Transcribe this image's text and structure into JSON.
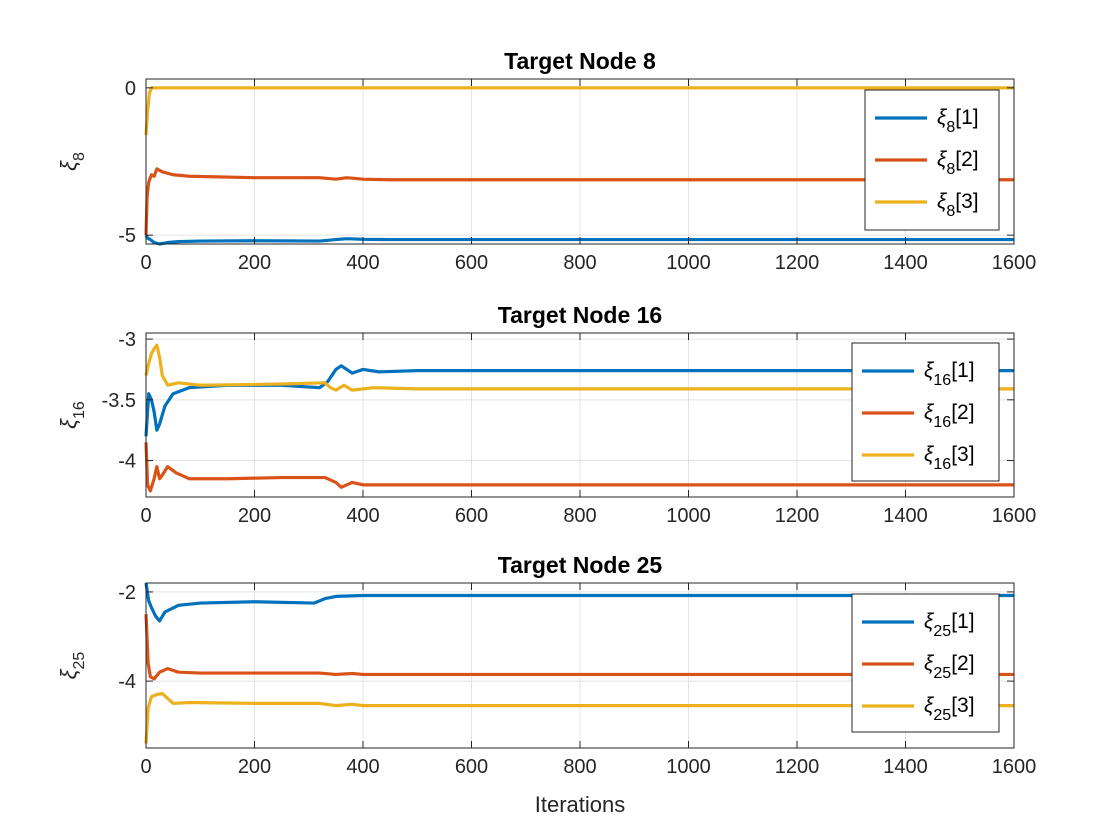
{
  "chart_data": [
    {
      "type": "line",
      "title": "Target Node 8",
      "xlabel": "",
      "ylabel": "ξ",
      "ylabel_sub": "8",
      "xlim": [
        0,
        1600
      ],
      "ylim": [
        -5.3,
        0.3
      ],
      "xticks": [
        0,
        200,
        400,
        600,
        800,
        1000,
        1200,
        1400,
        1600
      ],
      "yticks": [
        -5,
        0
      ],
      "grid": true,
      "legend": "top-right",
      "series": [
        {
          "name": "ξ",
          "sub": "8",
          "idx": "[1]",
          "color": "#0072BD",
          "points": [
            [
              0,
              -5.0
            ],
            [
              3,
              -5.1
            ],
            [
              8,
              -5.15
            ],
            [
              15,
              -5.25
            ],
            [
              25,
              -5.3
            ],
            [
              40,
              -5.25
            ],
            [
              60,
              -5.22
            ],
            [
              100,
              -5.2
            ],
            [
              200,
              -5.19
            ],
            [
              320,
              -5.2
            ],
            [
              350,
              -5.15
            ],
            [
              370,
              -5.12
            ],
            [
              400,
              -5.14
            ],
            [
              450,
              -5.15
            ],
            [
              500,
              -5.15
            ],
            [
              600,
              -5.15
            ],
            [
              1600,
              -5.15
            ]
          ]
        },
        {
          "name": "ξ",
          "sub": "8",
          "idx": "[2]",
          "color": "#D95319",
          "points": [
            [
              0,
              -5.0
            ],
            [
              2,
              -3.7
            ],
            [
              5,
              -3.2
            ],
            [
              10,
              -2.95
            ],
            [
              15,
              -3.0
            ],
            [
              20,
              -2.75
            ],
            [
              30,
              -2.85
            ],
            [
              50,
              -2.95
            ],
            [
              80,
              -3.0
            ],
            [
              200,
              -3.05
            ],
            [
              320,
              -3.05
            ],
            [
              350,
              -3.1
            ],
            [
              370,
              -3.05
            ],
            [
              400,
              -3.1
            ],
            [
              450,
              -3.12
            ],
            [
              500,
              -3.12
            ],
            [
              1600,
              -3.12
            ]
          ]
        },
        {
          "name": "ξ",
          "sub": "8",
          "idx": "[3]",
          "color": "#EDB120",
          "points": [
            [
              0,
              -1.6
            ],
            [
              3,
              -0.8
            ],
            [
              6,
              -0.2
            ],
            [
              10,
              0.0
            ],
            [
              20,
              0.0
            ],
            [
              1600,
              0.0
            ]
          ]
        }
      ]
    },
    {
      "type": "line",
      "title": "Target Node 16",
      "xlabel": "",
      "ylabel": "ξ",
      "ylabel_sub": "16",
      "xlim": [
        0,
        1600
      ],
      "ylim": [
        -4.3,
        -2.95
      ],
      "xticks": [
        0,
        200,
        400,
        600,
        800,
        1000,
        1200,
        1400,
        1600
      ],
      "yticks": [
        -4,
        -3.5,
        -3
      ],
      "grid": true,
      "legend": "top-right",
      "series": [
        {
          "name": "ξ",
          "sub": "16",
          "idx": "[1]",
          "color": "#0072BD",
          "points": [
            [
              0,
              -3.8
            ],
            [
              5,
              -3.45
            ],
            [
              10,
              -3.5
            ],
            [
              15,
              -3.6
            ],
            [
              20,
              -3.75
            ],
            [
              25,
              -3.7
            ],
            [
              35,
              -3.55
            ],
            [
              50,
              -3.45
            ],
            [
              80,
              -3.4
            ],
            [
              150,
              -3.38
            ],
            [
              250,
              -3.38
            ],
            [
              320,
              -3.4
            ],
            [
              335,
              -3.35
            ],
            [
              350,
              -3.25
            ],
            [
              360,
              -3.22
            ],
            [
              380,
              -3.28
            ],
            [
              400,
              -3.25
            ],
            [
              430,
              -3.27
            ],
            [
              500,
              -3.26
            ],
            [
              600,
              -3.26
            ],
            [
              1600,
              -3.26
            ]
          ]
        },
        {
          "name": "ξ",
          "sub": "16",
          "idx": "[2]",
          "color": "#D95319",
          "points": [
            [
              0,
              -3.85
            ],
            [
              3,
              -4.2
            ],
            [
              8,
              -4.25
            ],
            [
              15,
              -4.15
            ],
            [
              20,
              -4.05
            ],
            [
              25,
              -4.15
            ],
            [
              30,
              -4.12
            ],
            [
              40,
              -4.05
            ],
            [
              55,
              -4.1
            ],
            [
              80,
              -4.15
            ],
            [
              150,
              -4.15
            ],
            [
              250,
              -4.14
            ],
            [
              330,
              -4.14
            ],
            [
              350,
              -4.18
            ],
            [
              360,
              -4.22
            ],
            [
              380,
              -4.18
            ],
            [
              400,
              -4.2
            ],
            [
              450,
              -4.2
            ],
            [
              1600,
              -4.2
            ]
          ]
        },
        {
          "name": "ξ",
          "sub": "16",
          "idx": "[3]",
          "color": "#EDB120",
          "points": [
            [
              0,
              -3.3
            ],
            [
              5,
              -3.2
            ],
            [
              10,
              -3.12
            ],
            [
              15,
              -3.08
            ],
            [
              20,
              -3.05
            ],
            [
              25,
              -3.15
            ],
            [
              30,
              -3.3
            ],
            [
              40,
              -3.38
            ],
            [
              60,
              -3.36
            ],
            [
              100,
              -3.38
            ],
            [
              250,
              -3.37
            ],
            [
              330,
              -3.36
            ],
            [
              340,
              -3.4
            ],
            [
              350,
              -3.42
            ],
            [
              365,
              -3.38
            ],
            [
              380,
              -3.42
            ],
            [
              420,
              -3.4
            ],
            [
              500,
              -3.41
            ],
            [
              600,
              -3.41
            ],
            [
              1600,
              -3.41
            ]
          ]
        }
      ]
    },
    {
      "type": "line",
      "title": "Target Node 25",
      "xlabel": "Iterations",
      "ylabel": "ξ",
      "ylabel_sub": "25",
      "xlim": [
        0,
        1600
      ],
      "ylim": [
        -5.5,
        -1.8
      ],
      "xticks": [
        0,
        200,
        400,
        600,
        800,
        1000,
        1200,
        1400,
        1600
      ],
      "yticks": [
        -4,
        -2
      ],
      "grid": true,
      "legend": "top-right",
      "series": [
        {
          "name": "ξ",
          "sub": "25",
          "idx": "[1]",
          "color": "#0072BD",
          "points": [
            [
              0,
              -1.8
            ],
            [
              5,
              -2.2
            ],
            [
              10,
              -2.35
            ],
            [
              18,
              -2.55
            ],
            [
              25,
              -2.65
            ],
            [
              35,
              -2.45
            ],
            [
              60,
              -2.3
            ],
            [
              100,
              -2.25
            ],
            [
              200,
              -2.22
            ],
            [
              310,
              -2.25
            ],
            [
              330,
              -2.15
            ],
            [
              350,
              -2.1
            ],
            [
              400,
              -2.08
            ],
            [
              500,
              -2.08
            ],
            [
              1600,
              -2.08
            ]
          ]
        },
        {
          "name": "ξ",
          "sub": "25",
          "idx": "[2]",
          "color": "#D95319",
          "points": [
            [
              0,
              -2.5
            ],
            [
              4,
              -3.6
            ],
            [
              8,
              -3.9
            ],
            [
              15,
              -3.95
            ],
            [
              25,
              -3.8
            ],
            [
              40,
              -3.72
            ],
            [
              60,
              -3.8
            ],
            [
              100,
              -3.82
            ],
            [
              200,
              -3.82
            ],
            [
              320,
              -3.82
            ],
            [
              350,
              -3.85
            ],
            [
              380,
              -3.83
            ],
            [
              400,
              -3.85
            ],
            [
              1600,
              -3.85
            ]
          ]
        },
        {
          "name": "ξ",
          "sub": "25",
          "idx": "[3]",
          "color": "#EDB120",
          "points": [
            [
              0,
              -5.4
            ],
            [
              4,
              -4.6
            ],
            [
              10,
              -4.35
            ],
            [
              20,
              -4.3
            ],
            [
              30,
              -4.28
            ],
            [
              50,
              -4.5
            ],
            [
              80,
              -4.48
            ],
            [
              200,
              -4.5
            ],
            [
              320,
              -4.5
            ],
            [
              350,
              -4.55
            ],
            [
              380,
              -4.52
            ],
            [
              400,
              -4.55
            ],
            [
              1600,
              -4.55
            ]
          ]
        }
      ]
    }
  ]
}
